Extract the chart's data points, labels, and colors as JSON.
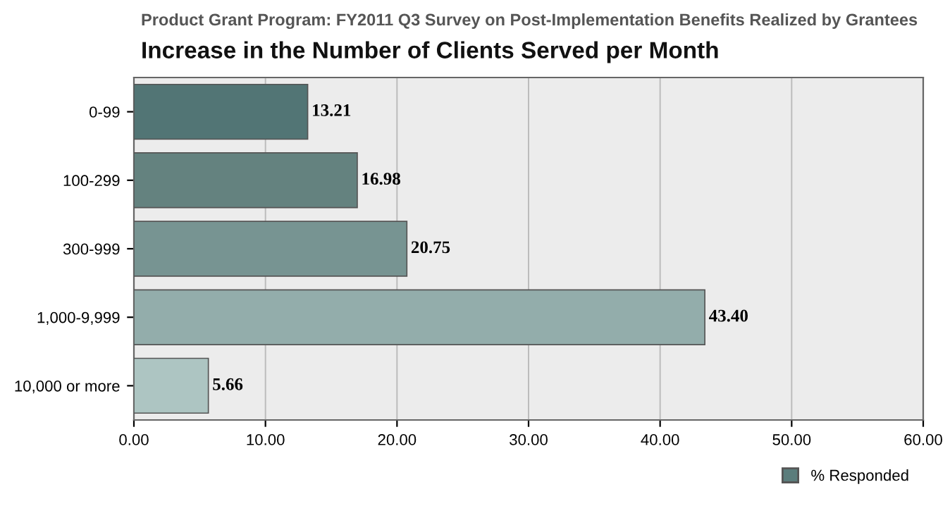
{
  "chart_data": {
    "type": "bar",
    "orientation": "horizontal",
    "title": "Increase in the Number of Clients Served per Month",
    "subtitle": "Product Grant Program: FY2011 Q3 Survey on Post-Implementation Benefits Realized by Grantees",
    "categories": [
      "0-99",
      "100-299",
      "300-999",
      "1,000-9,999",
      "10,000 or more"
    ],
    "series": [
      {
        "name": "% Responded",
        "color": "#5b7d7c",
        "colors": [
          "#527575",
          "#64827f",
          "#779492",
          "#93adab",
          "#adc5c2"
        ],
        "values": [
          13.21,
          16.98,
          20.75,
          43.4,
          5.66
        ],
        "value_labels": [
          "13.21",
          "16.98",
          "20.75",
          "43.40",
          "5.66"
        ]
      }
    ],
    "xlim": [
      0,
      60
    ],
    "xticks": [
      {
        "value": 0,
        "label": "0.00"
      },
      {
        "value": 10,
        "label": "10.00"
      },
      {
        "value": 20,
        "label": "20.00"
      },
      {
        "value": 30,
        "label": "30.00"
      },
      {
        "value": 40,
        "label": "40.00"
      },
      {
        "value": 50,
        "label": "50.00"
      },
      {
        "value": 60,
        "label": "60.00"
      }
    ],
    "grid": "x",
    "legend": "bottom right"
  }
}
